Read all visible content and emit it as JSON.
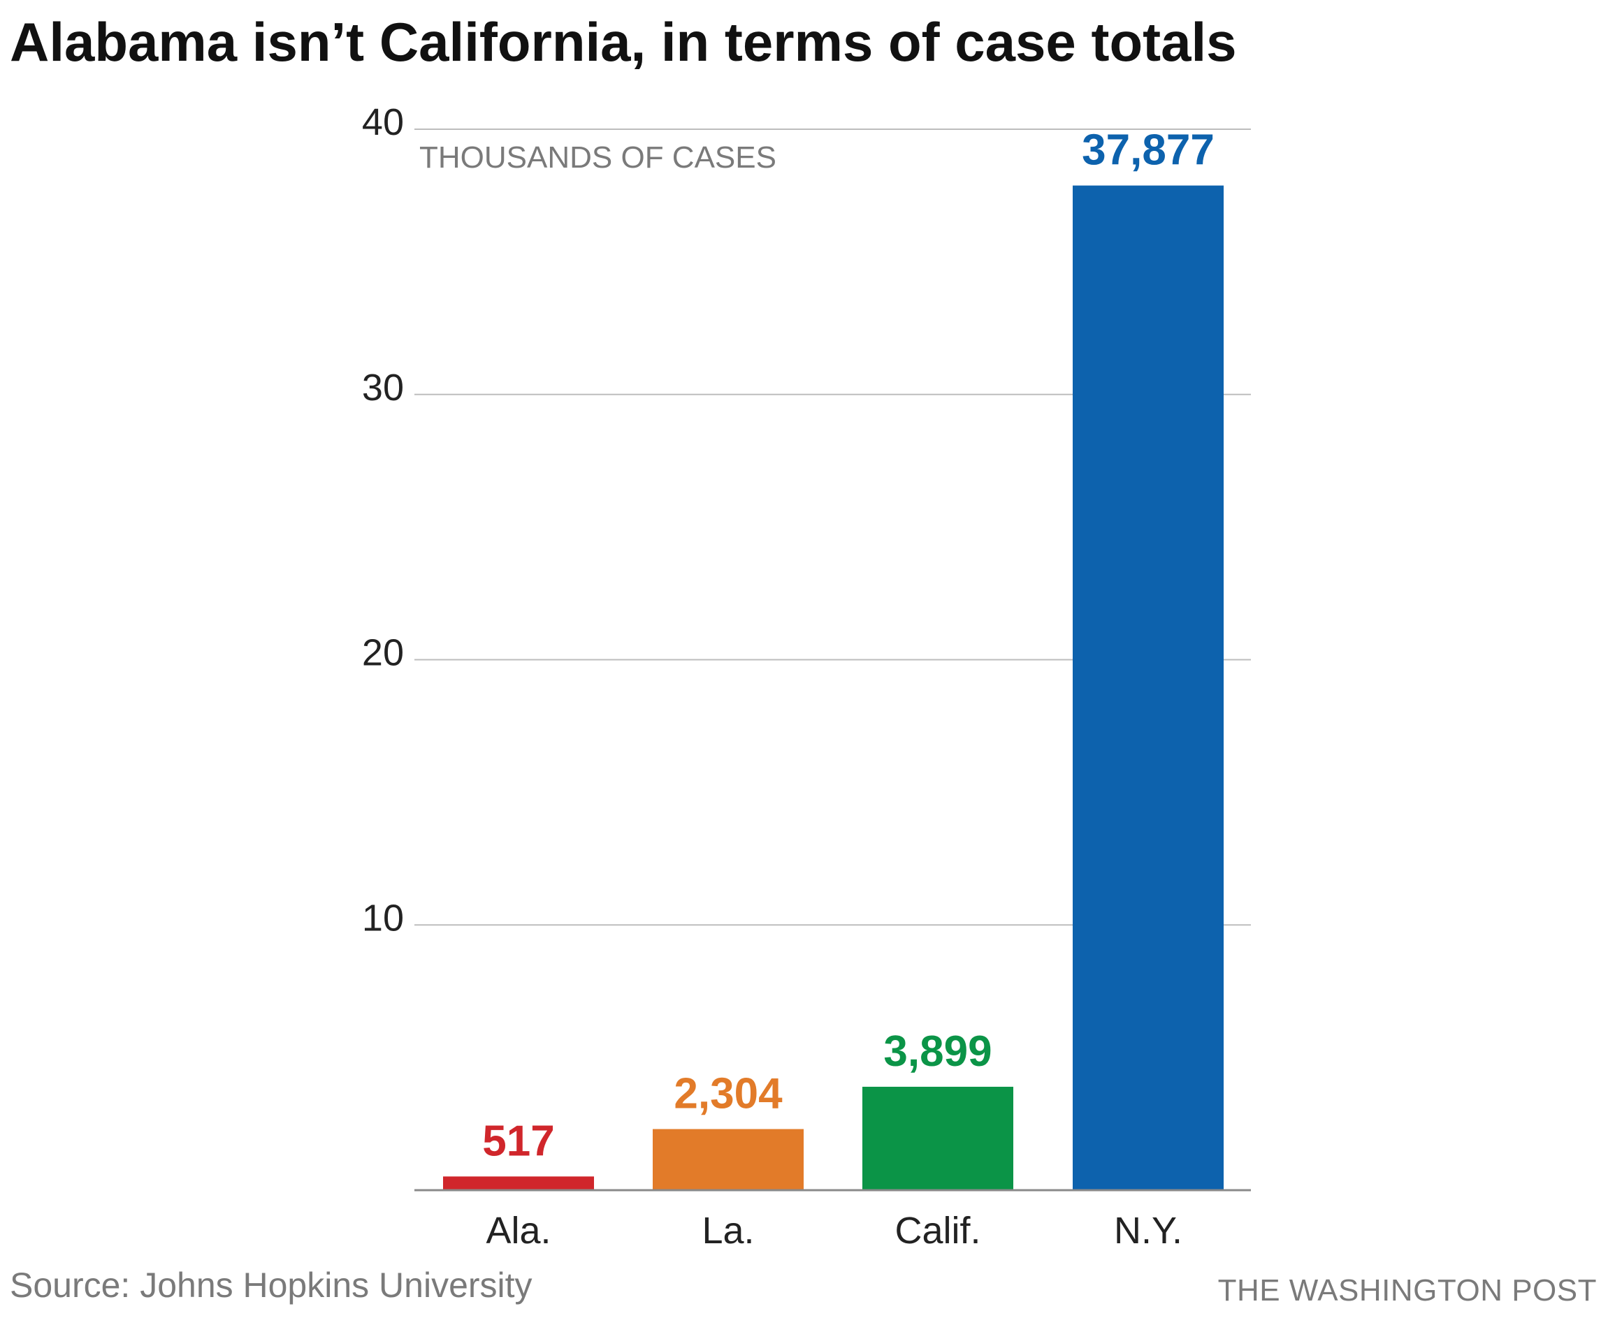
{
  "chart_data": {
    "type": "bar",
    "title": "Alabama isn’t California, in terms of case totals",
    "ylabel": "THOUSANDS OF CASES",
    "xlabel": "",
    "ylim": [
      0,
      40
    ],
    "yticks": [
      10,
      20,
      30,
      40
    ],
    "ytick_labels": [
      "10",
      "20",
      "30",
      "40"
    ],
    "grid": true,
    "categories": [
      "Ala.",
      "La.",
      "Calif.",
      "N.Y."
    ],
    "values": [
      517,
      2304,
      3899,
      37877
    ],
    "value_labels": [
      "517",
      "2,304",
      "3,899",
      "37,877"
    ],
    "colors": [
      "#d0262b",
      "#e27b29",
      "#0b9447",
      "#0d62ad"
    ]
  },
  "source": "Source: Johns Hopkins University",
  "credit": "THE WASHINGTON POST",
  "colors": {
    "grid": "#bdbdbd",
    "axis": "#8a8a8a",
    "tick_text": "#222222",
    "unit_label": "#7a7a7a"
  }
}
